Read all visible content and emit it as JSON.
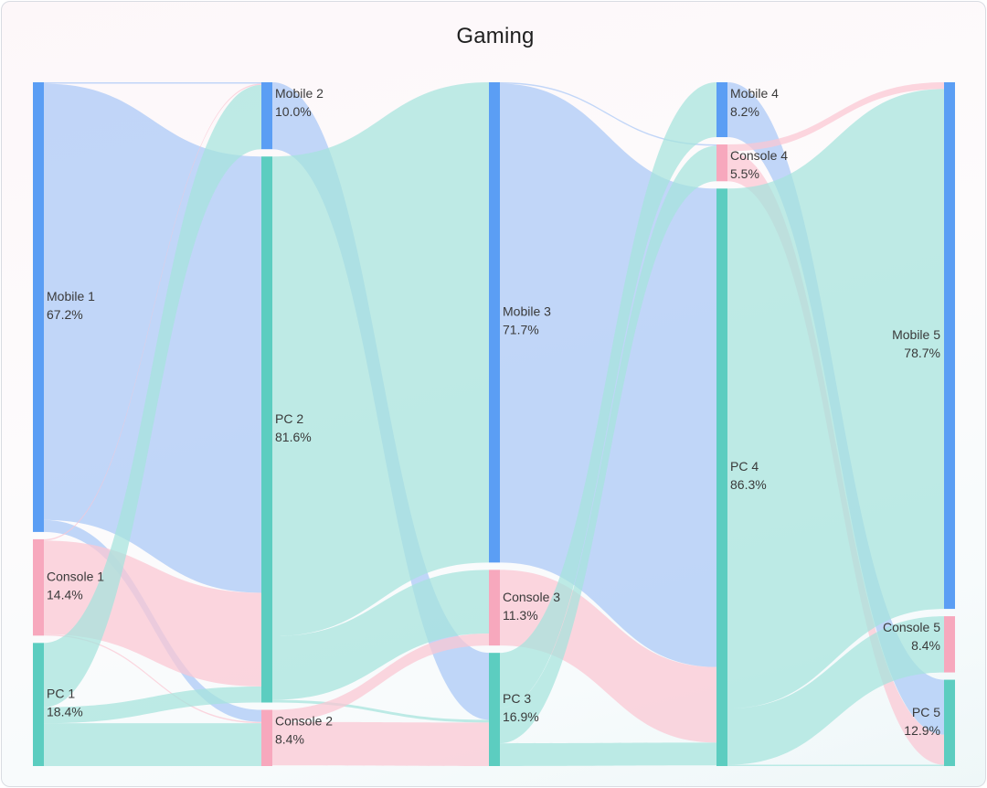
{
  "chart_data": {
    "type": "sankey",
    "title": "Gaming",
    "colors": {
      "Mobile": "#5b9ef4",
      "Console": "#f7a8bd",
      "PC": "#5ccdc0",
      "flow_Mobile": "#a9c8f7",
      "flow_Console": "#fbc6d3",
      "flow_PC": "#a5e3dc"
    },
    "stages": [
      {
        "nodes": [
          {
            "id": "M1",
            "name": "Mobile 1",
            "category": "Mobile",
            "percent_label": "67.2%"
          },
          {
            "id": "C1",
            "name": "Console 1",
            "category": "Console",
            "percent_label": "14.4%"
          },
          {
            "id": "P1",
            "name": "PC 1",
            "category": "PC",
            "percent_label": "18.4%"
          }
        ]
      },
      {
        "nodes": [
          {
            "id": "M2",
            "name": "Mobile 2",
            "category": "Mobile",
            "percent_label": "10.0%"
          },
          {
            "id": "P2",
            "name": "PC 2",
            "category": "PC",
            "percent_label": "81.6%"
          },
          {
            "id": "C2",
            "name": "Console 2",
            "category": "Console",
            "percent_label": "8.4%"
          }
        ]
      },
      {
        "nodes": [
          {
            "id": "M3",
            "name": "Mobile 3",
            "category": "Mobile",
            "percent_label": "71.7%"
          },
          {
            "id": "C3",
            "name": "Console 3",
            "category": "Console",
            "percent_label": "11.3%"
          },
          {
            "id": "P3",
            "name": "PC 3",
            "category": "PC",
            "percent_label": "16.9%"
          }
        ]
      },
      {
        "nodes": [
          {
            "id": "M4",
            "name": "Mobile 4",
            "category": "Mobile",
            "percent_label": "8.2%"
          },
          {
            "id": "C4",
            "name": "Console 4",
            "category": "Console",
            "percent_label": "5.5%"
          },
          {
            "id": "P4",
            "name": "PC 4",
            "category": "PC",
            "percent_label": "86.3%"
          }
        ]
      },
      {
        "nodes": [
          {
            "id": "M5",
            "name": "Mobile 5",
            "category": "Mobile",
            "percent_label": "78.7%"
          },
          {
            "id": "C5",
            "name": "Console 5",
            "category": "Console",
            "percent_label": "8.4%"
          },
          {
            "id": "P5",
            "name": "PC 5",
            "category": "PC",
            "percent_label": "12.9%"
          }
        ]
      }
    ],
    "links": [
      {
        "source": "M1",
        "target": "P2",
        "value": 65.2
      },
      {
        "source": "M1",
        "target": "M2",
        "value": 0.2
      },
      {
        "source": "M1",
        "target": "C2",
        "value": 1.8
      },
      {
        "source": "C1",
        "target": "C2",
        "value": 0.2
      },
      {
        "source": "C1",
        "target": "P2",
        "value": 14.0
      },
      {
        "source": "C1",
        "target": "M2",
        "value": 0.2
      },
      {
        "source": "P1",
        "target": "M2",
        "value": 9.6
      },
      {
        "source": "P1",
        "target": "C2",
        "value": 6.4
      },
      {
        "source": "P1",
        "target": "P2",
        "value": 2.4
      },
      {
        "source": "M2",
        "target": "P3",
        "value": 10.0
      },
      {
        "source": "P2",
        "target": "M3",
        "value": 71.7
      },
      {
        "source": "P2",
        "target": "C3",
        "value": 9.5
      },
      {
        "source": "P2",
        "target": "P3",
        "value": 0.4
      },
      {
        "source": "C2",
        "target": "C3",
        "value": 1.8
      },
      {
        "source": "C2",
        "target": "P3",
        "value": 6.5
      },
      {
        "source": "M3",
        "target": "C4",
        "value": 0.2
      },
      {
        "source": "M3",
        "target": "P4",
        "value": 71.5
      },
      {
        "source": "C3",
        "target": "P4",
        "value": 11.3
      },
      {
        "source": "P3",
        "target": "M4",
        "value": 8.2
      },
      {
        "source": "P3",
        "target": "C4",
        "value": 5.3
      },
      {
        "source": "P3",
        "target": "P4",
        "value": 3.4
      },
      {
        "source": "M4",
        "target": "P5",
        "value": 8.2
      },
      {
        "source": "C4",
        "target": "M5",
        "value": 1.0
      },
      {
        "source": "C4",
        "target": "P5",
        "value": 4.5
      },
      {
        "source": "P4",
        "target": "M5",
        "value": 77.7
      },
      {
        "source": "P4",
        "target": "C5",
        "value": 8.4
      },
      {
        "source": "P4",
        "target": "P5",
        "value": 0.2
      }
    ]
  }
}
